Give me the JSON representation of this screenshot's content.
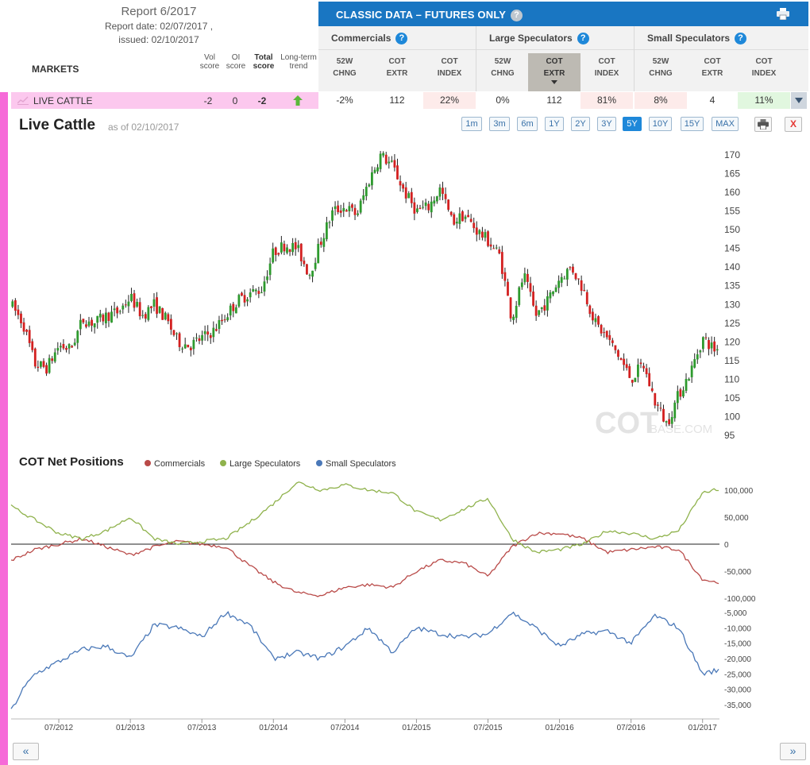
{
  "report": {
    "title": "Report 6/2017",
    "date": "Report date: 02/07/2017 ,",
    "issued": "issued: 02/10/2017"
  },
  "table": {
    "markets_label": "MARKETS",
    "score_heads": [
      {
        "line1": "Vol",
        "line2": "score",
        "bold": false
      },
      {
        "line1": "OI",
        "line2": "score",
        "bold": false
      },
      {
        "line1": "Total",
        "line2": "score",
        "bold": true
      },
      {
        "line1": "Long-term",
        "line2": "trend",
        "bold": false
      }
    ],
    "classic_title": "CLASSIC DATA – FUTURES ONLY",
    "groups": [
      {
        "name": "Commercials"
      },
      {
        "name": "Large Speculators"
      },
      {
        "name": "Small Speculators"
      }
    ],
    "col_heads": [
      {
        "l1": "52W",
        "l2": "CHNG"
      },
      {
        "l1": "COT",
        "l2": "EXTR"
      },
      {
        "l1": "COT",
        "l2": "INDEX"
      },
      {
        "l1": "52W",
        "l2": "CHNG"
      },
      {
        "l1": "COT",
        "l2": "EXTR"
      },
      {
        "l1": "COT",
        "l2": "INDEX"
      },
      {
        "l1": "52W",
        "l2": "CHNG"
      },
      {
        "l1": "COT",
        "l2": "EXTR"
      },
      {
        "l1": "COT",
        "l2": "INDEX"
      }
    ],
    "row": {
      "market": "LIVE CATTLE",
      "vol_score": "-2",
      "oi_score": "0",
      "total_score": "-2",
      "trend": "up",
      "cells": [
        "-2%",
        "112",
        "22%",
        "0%",
        "112",
        "81%",
        "8%",
        "4",
        "11%"
      ]
    }
  },
  "chart": {
    "title": "Live Cattle",
    "asof": "as of 02/10/2017",
    "ranges": [
      "1m",
      "3m",
      "6m",
      "1Y",
      "2Y",
      "3Y",
      "5Y",
      "10Y",
      "15Y",
      "MAX"
    ],
    "active_range": "5Y",
    "close_label": "X",
    "watermark_main": "COT",
    "watermark_sub": "BASE.COM",
    "cot_title": "COT Net Positions",
    "nav_prev": "«",
    "nav_next": "»"
  },
  "chart_data": [
    {
      "type": "candlestick",
      "title": "Live Cattle",
      "y_ticks": [
        95,
        100,
        105,
        110,
        115,
        120,
        125,
        130,
        135,
        140,
        145,
        150,
        155,
        160,
        165,
        170
      ],
      "ylim": [
        93,
        172
      ],
      "colors": {
        "up": "#2e9a2e",
        "down": "#d32020"
      },
      "close_path": [
        [
          "2012-03",
          130
        ],
        [
          "2012-04",
          125
        ],
        [
          "2012-05",
          114
        ],
        [
          "2012-06",
          113
        ],
        [
          "2012-07",
          119
        ],
        [
          "2012-08",
          118
        ],
        [
          "2012-09",
          126
        ],
        [
          "2012-10",
          125
        ],
        [
          "2012-11",
          127
        ],
        [
          "2012-12",
          128
        ],
        [
          "2013-01",
          132
        ],
        [
          "2013-02",
          127
        ],
        [
          "2013-03",
          130
        ],
        [
          "2013-04",
          126
        ],
        [
          "2013-05",
          120
        ],
        [
          "2013-06",
          119
        ],
        [
          "2013-07",
          121
        ],
        [
          "2013-08",
          123
        ],
        [
          "2013-09",
          127
        ],
        [
          "2013-10",
          131
        ],
        [
          "2013-11",
          133
        ],
        [
          "2013-12",
          134
        ],
        [
          "2014-01",
          144
        ],
        [
          "2014-02",
          146
        ],
        [
          "2014-03",
          145
        ],
        [
          "2014-04",
          138
        ],
        [
          "2014-05",
          147
        ],
        [
          "2014-06",
          155
        ],
        [
          "2014-07",
          156
        ],
        [
          "2014-08",
          154
        ],
        [
          "2014-09",
          163
        ],
        [
          "2014-10",
          170
        ],
        [
          "2014-11",
          167
        ],
        [
          "2014-12",
          160
        ],
        [
          "2015-01",
          155
        ],
        [
          "2015-02",
          156
        ],
        [
          "2015-03",
          161
        ],
        [
          "2015-04",
          152
        ],
        [
          "2015-05",
          154
        ],
        [
          "2015-06",
          150
        ],
        [
          "2015-07",
          147
        ],
        [
          "2015-08",
          143
        ],
        [
          "2015-09",
          126
        ],
        [
          "2015-10",
          138
        ],
        [
          "2015-11",
          127
        ],
        [
          "2015-12",
          131
        ],
        [
          "2016-01",
          137
        ],
        [
          "2016-02",
          140
        ],
        [
          "2016-03",
          134
        ],
        [
          "2016-04",
          125
        ],
        [
          "2016-05",
          121
        ],
        [
          "2016-06",
          116
        ],
        [
          "2016-07",
          110
        ],
        [
          "2016-08",
          114
        ],
        [
          "2016-09",
          104
        ],
        [
          "2016-10",
          98
        ],
        [
          "2016-11",
          106
        ],
        [
          "2016-12",
          112
        ],
        [
          "2017-01",
          121
        ],
        [
          "2017-02",
          118
        ]
      ]
    },
    {
      "type": "line",
      "title": "COT Net Positions",
      "y_ticks": [
        -100000,
        -50000,
        0,
        50000,
        100000
      ],
      "ylim": [
        -100000,
        110000
      ],
      "series": [
        {
          "name": "Commercials",
          "color": "#b94a48",
          "points": [
            [
              "2012-03",
              -30000
            ],
            [
              "2012-05",
              -10000
            ],
            [
              "2012-07",
              0
            ],
            [
              "2012-09",
              10000
            ],
            [
              "2012-11",
              -5000
            ],
            [
              "2013-01",
              -20000
            ],
            [
              "2013-03",
              -5000
            ],
            [
              "2013-05",
              5000
            ],
            [
              "2013-07",
              0
            ],
            [
              "2013-09",
              -5000
            ],
            [
              "2013-11",
              -40000
            ],
            [
              "2014-01",
              -70000
            ],
            [
              "2014-03",
              -90000
            ],
            [
              "2014-05",
              -95000
            ],
            [
              "2014-07",
              -80000
            ],
            [
              "2014-09",
              -75000
            ],
            [
              "2014-11",
              -80000
            ],
            [
              "2015-01",
              -50000
            ],
            [
              "2015-03",
              -30000
            ],
            [
              "2015-05",
              -35000
            ],
            [
              "2015-07",
              -60000
            ],
            [
              "2015-09",
              -5000
            ],
            [
              "2015-11",
              20000
            ],
            [
              "2016-01",
              20000
            ],
            [
              "2016-03",
              10000
            ],
            [
              "2016-05",
              -15000
            ],
            [
              "2016-07",
              -10000
            ],
            [
              "2016-09",
              -5000
            ],
            [
              "2016-11",
              -10000
            ],
            [
              "2017-01",
              -65000
            ],
            [
              "2017-02",
              -70000
            ]
          ]
        },
        {
          "name": "Large Speculators",
          "color": "#8fb24c",
          "points": [
            [
              "2012-03",
              70000
            ],
            [
              "2012-05",
              45000
            ],
            [
              "2012-07",
              20000
            ],
            [
              "2012-09",
              10000
            ],
            [
              "2012-11",
              25000
            ],
            [
              "2013-01",
              50000
            ],
            [
              "2013-03",
              10000
            ],
            [
              "2013-05",
              0
            ],
            [
              "2013-07",
              5000
            ],
            [
              "2013-09",
              10000
            ],
            [
              "2013-11",
              40000
            ],
            [
              "2014-01",
              75000
            ],
            [
              "2014-03",
              115000
            ],
            [
              "2014-05",
              100000
            ],
            [
              "2014-07",
              110000
            ],
            [
              "2014-09",
              100000
            ],
            [
              "2014-11",
              95000
            ],
            [
              "2015-01",
              60000
            ],
            [
              "2015-03",
              45000
            ],
            [
              "2015-05",
              65000
            ],
            [
              "2015-07",
              85000
            ],
            [
              "2015-09",
              10000
            ],
            [
              "2015-11",
              -15000
            ],
            [
              "2016-01",
              -10000
            ],
            [
              "2016-03",
              0
            ],
            [
              "2016-05",
              25000
            ],
            [
              "2016-07",
              20000
            ],
            [
              "2016-09",
              10000
            ],
            [
              "2016-11",
              25000
            ],
            [
              "2017-01",
              95000
            ],
            [
              "2017-02",
              100000
            ]
          ]
        }
      ]
    },
    {
      "type": "line",
      "title": "Small Speculators",
      "y_ticks": [
        -35000,
        -30000,
        -25000,
        -20000,
        -15000,
        -10000,
        -5000
      ],
      "ylim": [
        -37000,
        -3000
      ],
      "series": [
        {
          "name": "Small Speculators",
          "color": "#4a78b8",
          "points": [
            [
              "2012-03",
              -37000
            ],
            [
              "2012-04",
              -30000
            ],
            [
              "2012-05",
              -25000
            ],
            [
              "2012-07",
              -21000
            ],
            [
              "2012-09",
              -17000
            ],
            [
              "2012-11",
              -16000
            ],
            [
              "2013-01",
              -20000
            ],
            [
              "2013-03",
              -9000
            ],
            [
              "2013-05",
              -10000
            ],
            [
              "2013-07",
              -13000
            ],
            [
              "2013-09",
              -5000
            ],
            [
              "2013-11",
              -9000
            ],
            [
              "2014-01",
              -20000
            ],
            [
              "2014-03",
              -18000
            ],
            [
              "2014-05",
              -20000
            ],
            [
              "2014-07",
              -16000
            ],
            [
              "2014-09",
              -10000
            ],
            [
              "2014-11",
              -18000
            ],
            [
              "2015-01",
              -10000
            ],
            [
              "2015-03",
              -12000
            ],
            [
              "2015-05",
              -13000
            ],
            [
              "2015-07",
              -12000
            ],
            [
              "2015-09",
              -5000
            ],
            [
              "2015-11",
              -10000
            ],
            [
              "2016-01",
              -16000
            ],
            [
              "2016-03",
              -12000
            ],
            [
              "2016-05",
              -11000
            ],
            [
              "2016-07",
              -15000
            ],
            [
              "2016-09",
              -6000
            ],
            [
              "2016-11",
              -10000
            ],
            [
              "2017-01",
              -25000
            ],
            [
              "2017-02",
              -24000
            ]
          ]
        }
      ]
    }
  ],
  "x_axis": {
    "ticks": [
      "07/2012",
      "01/2013",
      "07/2013",
      "01/2014",
      "07/2014",
      "01/2015",
      "07/2015",
      "01/2016",
      "07/2016",
      "01/2017"
    ]
  }
}
